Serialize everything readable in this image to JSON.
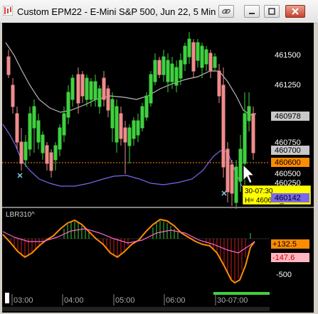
{
  "window": {
    "title": "Custom EPM22 - E-Mini S&P 500, Jun 22, 5 Min",
    "buttons": [
      "link",
      "minimize",
      "maximize",
      "close"
    ]
  },
  "price_panel": {
    "axis_labels": [
      "461500",
      "461250",
      "460750",
      "460500"
    ],
    "partial_label": "460250",
    "badges": {
      "upper": "460978",
      "mid": "460700",
      "ref": "460600",
      "lower": "460142"
    },
    "crosshair_tooltip": {
      "time": "30-07:30",
      "value": "H= 460600_00"
    },
    "colors": {
      "up_candle": "#3fd13f",
      "down_candle": "#f08c8c",
      "upper_band": "#b8b8b8",
      "lower_band": "#7b68ee",
      "ref_line": "#ff8c00",
      "markers": "#87ceeb"
    }
  },
  "indicator_panel": {
    "name": "LBR310^",
    "axis_labels": [
      "+132.5",
      "-147.6",
      "-500"
    ],
    "colors": {
      "positive": "#ff8c00",
      "negative": "#ff8c00",
      "signal": "#ff66cc"
    }
  },
  "time_axis": {
    "labels": [
      "03:00",
      "04:00",
      "05:00",
      "06:00",
      "30-07:00"
    ]
  }
}
